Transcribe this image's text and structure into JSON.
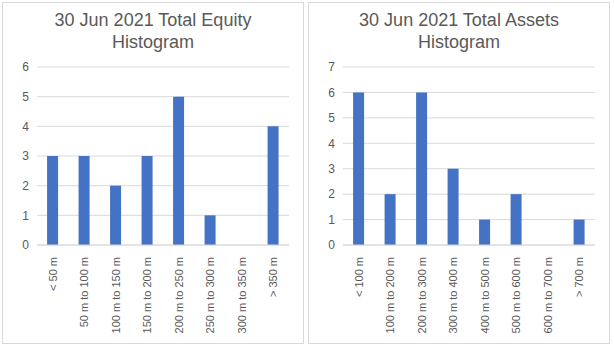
{
  "chart_data": [
    {
      "type": "bar",
      "title": "30 Jun 2021 Total Equity Histogram",
      "categories": [
        "< 50 m",
        "50 m to 100 m",
        "100 m to 150 m",
        "150 m to 200 m",
        "200 m to 250 m",
        "250 m to 300 m",
        "300 m to 350 m",
        "> 350 m"
      ],
      "values": [
        3,
        3,
        2,
        3,
        5,
        1,
        0,
        4
      ],
      "color": "#4472c4",
      "ylim": [
        0,
        6
      ],
      "yticks": [
        0,
        1,
        2,
        3,
        4,
        5,
        6
      ],
      "grid": true
    },
    {
      "type": "bar",
      "title": "30 Jun 2021 Total Assets Histogram",
      "categories": [
        "< 100 m",
        "100 m to 200 m",
        "200 m to 300 m",
        "300 m to 400 m",
        "400 m to 500 m",
        "500 m to 600 m",
        "600 m to 700 m",
        "> 700 m"
      ],
      "values": [
        6,
        2,
        6,
        3,
        1,
        2,
        0,
        1
      ],
      "color": "#4472c4",
      "ylim": [
        0,
        7
      ],
      "yticks": [
        0,
        1,
        2,
        3,
        4,
        5,
        6,
        7
      ],
      "grid": true
    }
  ]
}
